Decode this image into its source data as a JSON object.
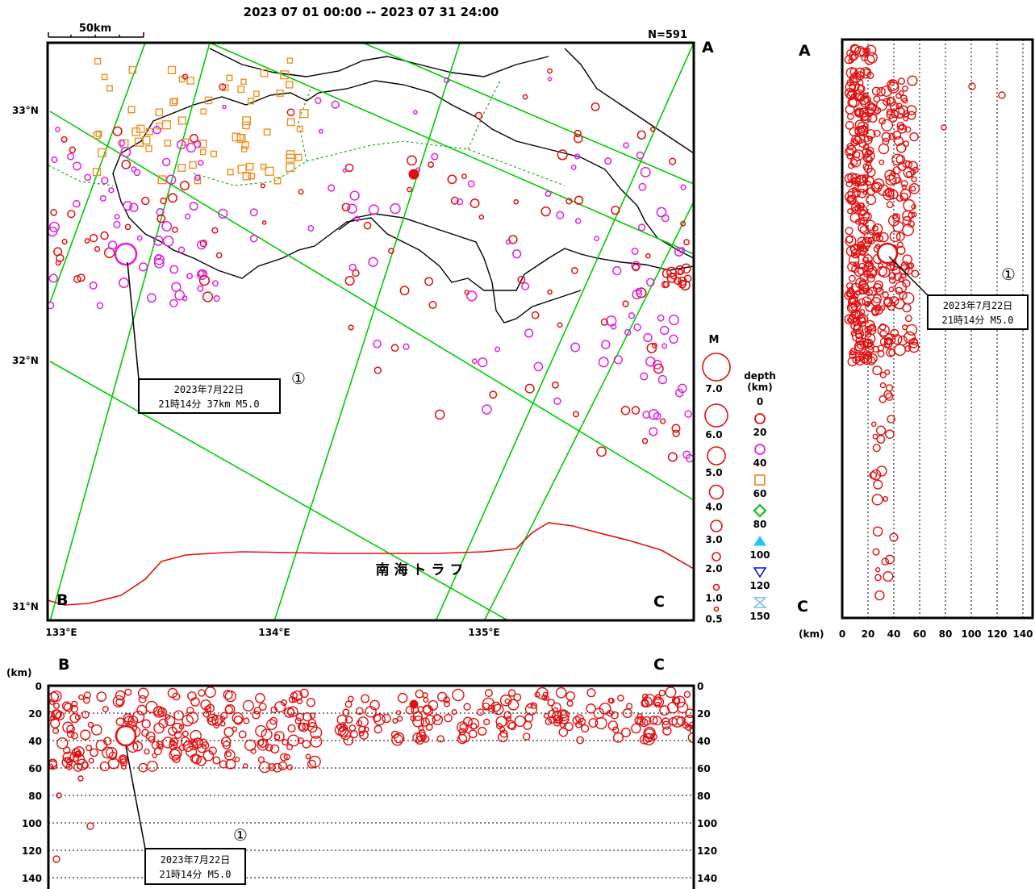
{
  "header": {
    "period": "2023 07 01 00:00 -- 2023 07 31 24:00",
    "count": "N=591",
    "scalebar": "50km"
  },
  "map": {
    "lat_labels": [
      "33°N",
      "32°N",
      "31°N"
    ],
    "lon_labels": [
      "133°E",
      "134°E",
      "135°E"
    ],
    "corner_labels": {
      "A": "A",
      "B": "B",
      "C": "C"
    },
    "trough_label": "南 海 ト ラ フ",
    "event_marker": "①",
    "callout": {
      "line1": "2023年7月22日",
      "line2": "21時14分 37km  M5.0"
    },
    "colors": {
      "frame": "#000000",
      "grid": "#00cc00",
      "trough": "#e01010",
      "coast": "#000000",
      "prefecture": "#00aa00"
    }
  },
  "legend": {
    "magnitude_title": "M",
    "magnitudes": [
      "7.0",
      "6.0",
      "5.0",
      "4.0",
      "3.0",
      "2.0",
      "1.0",
      "0.5"
    ],
    "depth_title_1": "depth",
    "depth_title_2": "(km)",
    "depths": [
      "0",
      "20",
      "40",
      "60",
      "80",
      "100",
      "120",
      "150"
    ],
    "depth_colors": [
      "#e01010",
      "#e020e0",
      "#f09020",
      "#10c010",
      "#20c8e8",
      "#1010e0",
      "#80c0f0"
    ]
  },
  "section_ac": {
    "top_label": "A",
    "bottom_label": "C",
    "unit": "(km)",
    "ticks": [
      "0",
      "20",
      "40",
      "60",
      "80",
      "100",
      "120",
      "140"
    ],
    "event_marker": "①",
    "callout": {
      "line1": "2023年7月22日",
      "line2": "21時14分  M5.0"
    }
  },
  "section_bc": {
    "left_label": "B",
    "right_label": "C",
    "unit": "(km)",
    "ticks": [
      "0",
      "20",
      "40",
      "60",
      "80",
      "100",
      "120",
      "140"
    ],
    "event_marker": "①",
    "callout": {
      "line1": "2023年7月22日",
      "line2": "21時14分  M5.0"
    }
  }
}
